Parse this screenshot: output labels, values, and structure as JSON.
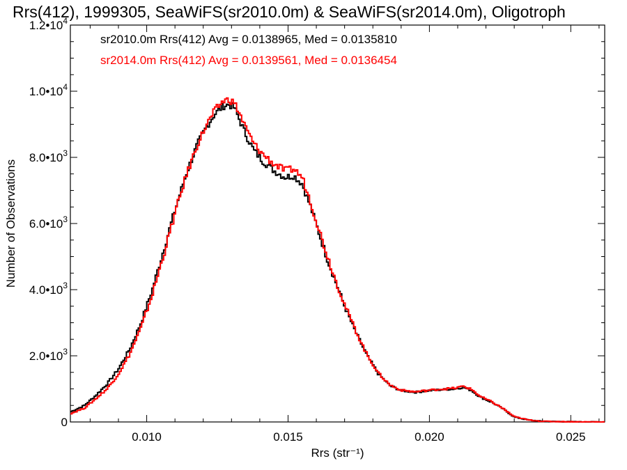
{
  "chart_data": {
    "type": "line",
    "title": "Rrs(412), 1999305, SeaWiFS(sr2010.0m) & SeaWiFS(sr2014.0m), Oligotroph",
    "xlabel": "Rrs (str⁻¹)",
    "ylabel": "Number of Observations",
    "xlim": [
      0.0073,
      0.0262
    ],
    "ylim": [
      0,
      12000
    ],
    "grid": false,
    "x_ticks": [
      {
        "value": 0.01,
        "label": "0.010"
      },
      {
        "value": 0.015,
        "label": "0.015"
      },
      {
        "value": 0.02,
        "label": "0.020"
      },
      {
        "value": 0.025,
        "label": "0.025"
      }
    ],
    "y_ticks": [
      {
        "value": 0,
        "mant": "0",
        "exp": ""
      },
      {
        "value": 2000,
        "mant": "2.0•10",
        "exp": "3"
      },
      {
        "value": 4000,
        "mant": "4.0•10",
        "exp": "3"
      },
      {
        "value": 6000,
        "mant": "6.0•10",
        "exp": "3"
      },
      {
        "value": 8000,
        "mant": "8.0•10",
        "exp": "3"
      },
      {
        "value": 10000,
        "mant": "1.0•10",
        "exp": "4"
      },
      {
        "value": 12000,
        "mant": "1.2•10",
        "exp": "4"
      }
    ],
    "annotations": [
      {
        "text": "sr2010.0m Rrs(412) Avg = 0.0138965, Med = 0.0135810",
        "color": "#000000"
      },
      {
        "text": "sr2014.0m Rrs(412) Avg = 0.0139561, Med = 0.0136454",
        "color": "#ff0000"
      }
    ],
    "series": [
      {
        "color": "#000000",
        "x": [
          0.0073,
          0.0078,
          0.0082,
          0.0086,
          0.009,
          0.0094,
          0.0098,
          0.0102,
          0.0106,
          0.011,
          0.0114,
          0.0118,
          0.0121,
          0.0124,
          0.0127,
          0.0129,
          0.0131,
          0.0133,
          0.0135,
          0.0138,
          0.0141,
          0.0145,
          0.0149,
          0.0152,
          0.0155,
          0.0158,
          0.0161,
          0.0164,
          0.0167,
          0.017,
          0.0174,
          0.0178,
          0.0182,
          0.0186,
          0.019,
          0.0195,
          0.02,
          0.0205,
          0.0209,
          0.0212,
          0.0215,
          0.0218,
          0.0222,
          0.0226,
          0.023,
          0.0235,
          0.024,
          0.025,
          0.0262
        ],
        "y": [
          300,
          500,
          800,
          1150,
          1600,
          2200,
          3000,
          4000,
          5200,
          6400,
          7500,
          8400,
          8900,
          9300,
          9550,
          9600,
          9500,
          9100,
          8700,
          8200,
          7900,
          7600,
          7400,
          7450,
          7200,
          6500,
          5700,
          4900,
          4200,
          3500,
          2700,
          2000,
          1450,
          1100,
          950,
          900,
          950,
          980,
          1000,
          1050,
          950,
          750,
          600,
          400,
          150,
          60,
          20,
          5,
          0
        ]
      },
      {
        "color": "#ff0000",
        "x": [
          0.0073,
          0.0078,
          0.0082,
          0.0086,
          0.009,
          0.0094,
          0.0098,
          0.0102,
          0.0106,
          0.011,
          0.0114,
          0.0118,
          0.0121,
          0.0124,
          0.0127,
          0.0129,
          0.0131,
          0.0133,
          0.0135,
          0.0138,
          0.0141,
          0.0145,
          0.0149,
          0.0152,
          0.0155,
          0.0158,
          0.0161,
          0.0164,
          0.0167,
          0.017,
          0.0174,
          0.0178,
          0.0182,
          0.0186,
          0.019,
          0.0195,
          0.02,
          0.0205,
          0.0209,
          0.0212,
          0.0215,
          0.0218,
          0.0222,
          0.0226,
          0.023,
          0.0235,
          0.024,
          0.025,
          0.0262
        ],
        "y": [
          250,
          420,
          700,
          1000,
          1450,
          2050,
          2850,
          3850,
          5050,
          6300,
          7450,
          8400,
          8950,
          9400,
          9700,
          9750,
          9650,
          9300,
          8900,
          8400,
          8100,
          7800,
          7600,
          7650,
          7400,
          6650,
          5800,
          5000,
          4250,
          3550,
          2750,
          2020,
          1470,
          1120,
          960,
          910,
          960,
          1000,
          1020,
          1080,
          980,
          770,
          610,
          410,
          160,
          60,
          20,
          5,
          0
        ]
      }
    ]
  }
}
